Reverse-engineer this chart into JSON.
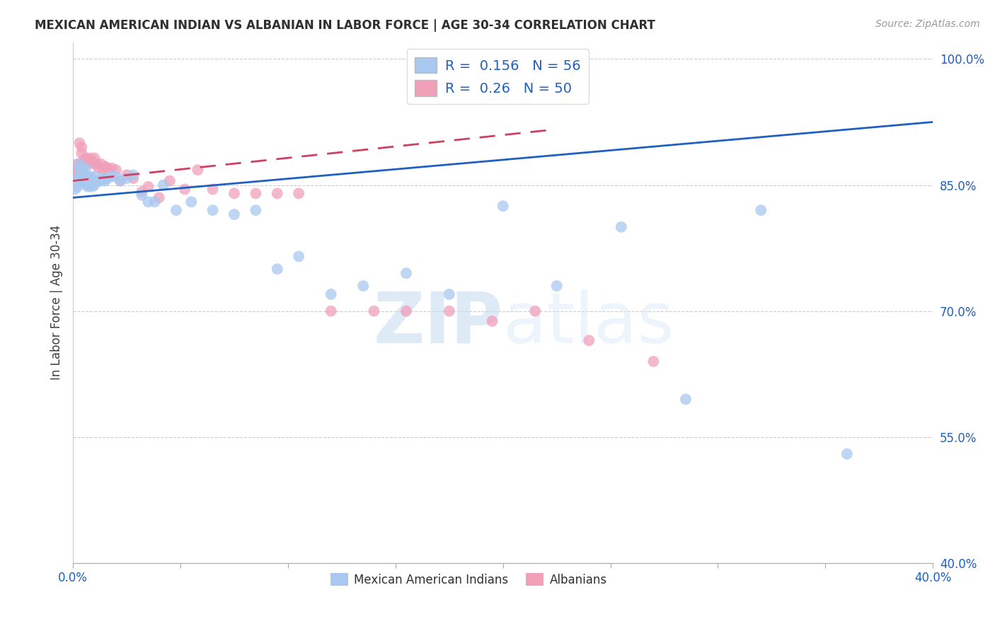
{
  "title": "MEXICAN AMERICAN INDIAN VS ALBANIAN IN LABOR FORCE | AGE 30-34 CORRELATION CHART",
  "source": "Source: ZipAtlas.com",
  "ylabel": "In Labor Force | Age 30-34",
  "xlim": [
    0.0,
    0.4
  ],
  "ylim": [
    0.4,
    1.02
  ],
  "xticks": [
    0.0,
    0.05,
    0.1,
    0.15,
    0.2,
    0.25,
    0.3,
    0.35,
    0.4
  ],
  "xticklabels": [
    "0.0%",
    "",
    "",
    "",
    "",
    "",
    "",
    "",
    "40.0%"
  ],
  "ytick_positions": [
    0.4,
    0.55,
    0.7,
    0.85,
    1.0
  ],
  "yticklabels_right": [
    "40.0%",
    "55.0%",
    "70.0%",
    "85.0%",
    "100.0%"
  ],
  "legend_blue_label": "Mexican American Indians",
  "legend_pink_label": "Albanians",
  "R_blue": 0.156,
  "N_blue": 56,
  "R_pink": 0.26,
  "N_pink": 50,
  "color_blue": "#A8C8F0",
  "color_pink": "#F0A0B8",
  "color_blue_line": "#2060C0",
  "color_pink_line": "#D04060",
  "watermark_zip": "ZIP",
  "watermark_atlas": "atlas",
  "blue_x": [
    0.001,
    0.001,
    0.002,
    0.002,
    0.003,
    0.003,
    0.003,
    0.004,
    0.004,
    0.004,
    0.005,
    0.005,
    0.005,
    0.006,
    0.006,
    0.006,
    0.007,
    0.007,
    0.008,
    0.008,
    0.009,
    0.009,
    0.01,
    0.01,
    0.011,
    0.012,
    0.013,
    0.014,
    0.015,
    0.016,
    0.018,
    0.02,
    0.022,
    0.025,
    0.028,
    0.032,
    0.035,
    0.038,
    0.042,
    0.048,
    0.055,
    0.065,
    0.075,
    0.085,
    0.095,
    0.105,
    0.12,
    0.135,
    0.155,
    0.175,
    0.2,
    0.225,
    0.255,
    0.285,
    0.32,
    0.36
  ],
  "blue_y": [
    0.845,
    0.855,
    0.848,
    0.855,
    0.86,
    0.87,
    0.875,
    0.858,
    0.862,
    0.868,
    0.855,
    0.86,
    0.865,
    0.85,
    0.855,
    0.87,
    0.848,
    0.858,
    0.852,
    0.86,
    0.848,
    0.855,
    0.85,
    0.86,
    0.855,
    0.855,
    0.855,
    0.858,
    0.855,
    0.858,
    0.86,
    0.86,
    0.855,
    0.858,
    0.862,
    0.838,
    0.83,
    0.83,
    0.85,
    0.82,
    0.83,
    0.82,
    0.815,
    0.82,
    0.75,
    0.765,
    0.72,
    0.73,
    0.745,
    0.72,
    0.825,
    0.73,
    0.8,
    0.595,
    0.82,
    0.53
  ],
  "pink_x": [
    0.001,
    0.001,
    0.002,
    0.002,
    0.003,
    0.003,
    0.004,
    0.004,
    0.004,
    0.005,
    0.005,
    0.006,
    0.006,
    0.007,
    0.007,
    0.008,
    0.008,
    0.009,
    0.01,
    0.01,
    0.011,
    0.012,
    0.013,
    0.014,
    0.015,
    0.016,
    0.018,
    0.02,
    0.022,
    0.025,
    0.028,
    0.032,
    0.035,
    0.04,
    0.045,
    0.052,
    0.058,
    0.065,
    0.075,
    0.085,
    0.095,
    0.105,
    0.12,
    0.14,
    0.155,
    0.175,
    0.195,
    0.215,
    0.24,
    0.27
  ],
  "pink_y": [
    0.865,
    0.87,
    0.865,
    0.875,
    0.875,
    0.9,
    0.87,
    0.888,
    0.895,
    0.878,
    0.88,
    0.875,
    0.882,
    0.88,
    0.878,
    0.878,
    0.882,
    0.878,
    0.875,
    0.882,
    0.875,
    0.87,
    0.875,
    0.868,
    0.872,
    0.87,
    0.87,
    0.868,
    0.855,
    0.862,
    0.858,
    0.842,
    0.848,
    0.835,
    0.855,
    0.845,
    0.868,
    0.845,
    0.84,
    0.84,
    0.84,
    0.84,
    0.7,
    0.7,
    0.7,
    0.7,
    0.688,
    0.7,
    0.665,
    0.64
  ],
  "blue_trend_x": [
    0.0,
    0.4
  ],
  "blue_trend_y": [
    0.835,
    0.925
  ],
  "pink_trend_x": [
    0.0,
    0.22
  ],
  "pink_trend_y": [
    0.855,
    0.915
  ]
}
